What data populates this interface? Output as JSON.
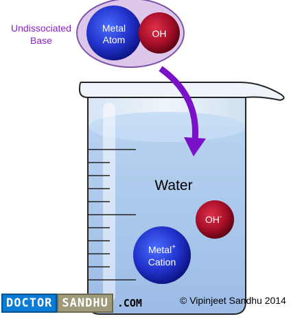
{
  "base_label_line1": "Undissociated",
  "base_label_line2": "Base",
  "metal_atom_line1": "Metal",
  "metal_atom_line2": "Atom",
  "oh_molecule": "OH",
  "water_label": "Water",
  "oh_ion": "OH",
  "oh_ion_sup": "-",
  "cation_line1": "Metal",
  "cation_line1_sup": "+",
  "cation_line2": "Cation",
  "logo": {
    "part1": "DOCTOR",
    "part2": "SANDHU",
    "part3": ".COM"
  },
  "copyright": "© Vipinjeet Sandhu 2014",
  "colors": {
    "label_purple": "#8b1fc4",
    "arrow_purple": "#7a10c8",
    "metal_blue": "#1f2fc8",
    "oh_red": "#b0102a",
    "water": "#a9c6ea"
  }
}
